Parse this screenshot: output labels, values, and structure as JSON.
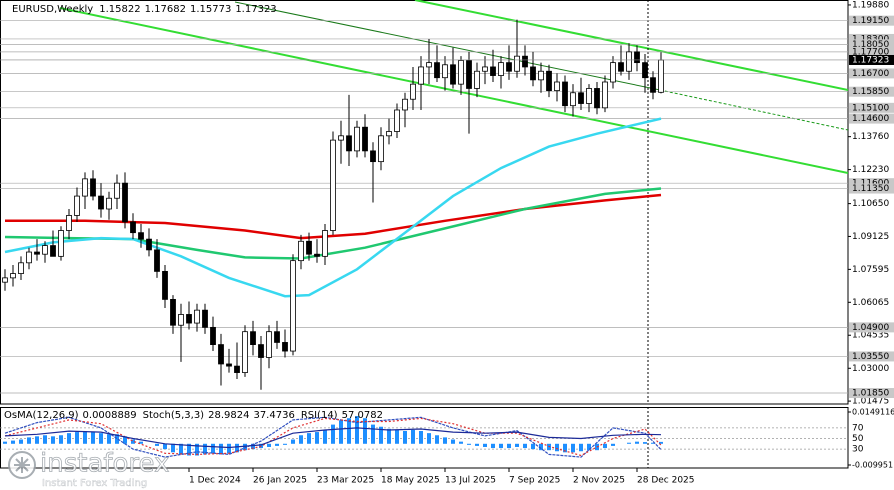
{
  "chart_data": {
    "type": "candlestick",
    "title": "EURUSD,Weekly",
    "categories": [
      null,
      null,
      null,
      null,
      null,
      null,
      null,
      null,
      null,
      null,
      null,
      null,
      null,
      null,
      null,
      null,
      null,
      null,
      null,
      null,
      null,
      null,
      null,
      "1 Dec 2024",
      null,
      null,
      null,
      null,
      null,
      null,
      null,
      "26 Jan 2025",
      null,
      null,
      null,
      null,
      null,
      null,
      null,
      "23 Mar 2025",
      null,
      null,
      null,
      null,
      null,
      null,
      null,
      "18 May 2025",
      null,
      null,
      null,
      null,
      null,
      null,
      null,
      "13 Jul 2025",
      null,
      null,
      null,
      null,
      null,
      null,
      null,
      "7 Sep 2025",
      null,
      null,
      null,
      null,
      null,
      null,
      null,
      "2 Nov 2025",
      null,
      null,
      null,
      null,
      null,
      null,
      null,
      "28 Dec 2025",
      null,
      null,
      null
    ],
    "ohlc": {
      "open": [
        1.07,
        1.072,
        1.074,
        1.079,
        1.084,
        1.083,
        1.087,
        1.082,
        1.094,
        1.101,
        1.11,
        1.118,
        1.11,
        1.104,
        1.109,
        1.116,
        1.098,
        1.093,
        1.09,
        1.085,
        1.075,
        1.062,
        1.05,
        1.055,
        1.051,
        1.057,
        1.049,
        1.041,
        1.032,
        1.031,
        1.028,
        1.047,
        1.041,
        1.035,
        1.047,
        1.042,
        1.038,
        1.08,
        1.089,
        1.083,
        1.082,
        1.094,
        1.136,
        1.138,
        1.131,
        1.142,
        1.131,
        1.126,
        1.138,
        1.14,
        1.15,
        1.155,
        1.162,
        1.17,
        1.172,
        1.165,
        1.171,
        1.162,
        1.173,
        1.16,
        1.168,
        1.17,
        1.166,
        1.172,
        1.168,
        1.175,
        1.17,
        1.164,
        1.168,
        1.159,
        1.163,
        1.152,
        1.158,
        1.153,
        1.16,
        1.151,
        1.163,
        1.172,
        1.168,
        1.177,
        1.172,
        1.165,
        1.15822
      ],
      "high": [
        1.076,
        1.078,
        1.082,
        1.086,
        1.09,
        1.089,
        1.094,
        1.096,
        1.104,
        1.114,
        1.121,
        1.122,
        1.116,
        1.112,
        1.12,
        1.121,
        1.102,
        1.097,
        1.095,
        1.09,
        1.078,
        1.064,
        1.06,
        1.061,
        1.06,
        1.06,
        1.054,
        1.046,
        1.039,
        1.042,
        1.05,
        1.052,
        1.045,
        1.05,
        1.052,
        1.048,
        1.083,
        1.092,
        1.093,
        1.09,
        1.097,
        1.14,
        1.145,
        1.157,
        1.145,
        1.148,
        1.135,
        1.142,
        1.146,
        1.153,
        1.158,
        1.17,
        1.175,
        1.183,
        1.18,
        1.175,
        1.179,
        1.175,
        1.177,
        1.172,
        1.175,
        1.178,
        1.175,
        1.18,
        1.192,
        1.18,
        1.177,
        1.172,
        1.171,
        1.167,
        1.166,
        1.162,
        1.165,
        1.162,
        1.163,
        1.166,
        1.175,
        1.18,
        1.181,
        1.18,
        1.176,
        1.168,
        1.17682
      ],
      "low": [
        1.066,
        1.068,
        1.071,
        1.076,
        1.08,
        1.079,
        1.083,
        1.08,
        1.09,
        1.098,
        1.104,
        1.108,
        1.1,
        1.099,
        1.104,
        1.095,
        1.09,
        1.086,
        1.082,
        1.072,
        1.058,
        1.046,
        1.033,
        1.048,
        1.047,
        1.046,
        1.038,
        1.022,
        1.028,
        1.025,
        1.026,
        1.036,
        1.02,
        1.03,
        1.039,
        1.035,
        1.036,
        1.076,
        1.08,
        1.079,
        1.078,
        1.092,
        1.125,
        1.124,
        1.128,
        1.128,
        1.107,
        1.122,
        1.134,
        1.137,
        1.142,
        1.15,
        1.15,
        1.162,
        1.163,
        1.159,
        1.16,
        1.157,
        1.139,
        1.156,
        1.162,
        1.163,
        1.16,
        1.164,
        1.165,
        1.166,
        1.161,
        1.158,
        1.156,
        1.154,
        1.149,
        1.147,
        1.15,
        1.149,
        1.148,
        1.149,
        1.16,
        1.166,
        1.164,
        1.168,
        1.158,
        1.155,
        1.15773
      ],
      "close": [
        1.072,
        1.074,
        1.079,
        1.084,
        1.083,
        1.087,
        1.082,
        1.094,
        1.101,
        1.11,
        1.118,
        1.11,
        1.104,
        1.109,
        1.116,
        1.098,
        1.093,
        1.09,
        1.085,
        1.075,
        1.062,
        1.05,
        1.055,
        1.051,
        1.057,
        1.049,
        1.041,
        1.032,
        1.031,
        1.028,
        1.047,
        1.041,
        1.035,
        1.047,
        1.042,
        1.038,
        1.08,
        1.089,
        1.083,
        1.082,
        1.094,
        1.136,
        1.138,
        1.131,
        1.142,
        1.131,
        1.126,
        1.138,
        1.14,
        1.15,
        1.155,
        1.162,
        1.17,
        1.172,
        1.165,
        1.171,
        1.162,
        1.173,
        1.16,
        1.168,
        1.17,
        1.166,
        1.172,
        1.168,
        1.175,
        1.17,
        1.164,
        1.168,
        1.159,
        1.163,
        1.152,
        1.158,
        1.153,
        1.16,
        1.151,
        1.163,
        1.172,
        1.168,
        1.177,
        1.172,
        1.165,
        1.15822,
        1.17323
      ]
    },
    "ylim": [
      1.0134,
      1.2011
    ],
    "yticks": [
      {
        "value": 1.1988,
        "label": "1.19880"
      },
      {
        "value": 1.1376,
        "label": "1.13760"
      },
      {
        "value": 1.1223,
        "label": "1.12230"
      },
      {
        "value": 1.1065,
        "label": "1.10650"
      },
      1.09125,
      1.07595,
      1.06065,
      1.04535,
      {
        "value": 1.03,
        "label": "1.03000"
      },
      1.01475
    ],
    "levels": [
      {
        "value": 1.1915,
        "label": "1.19150"
      },
      {
        "value": 1.183,
        "label": "1.18300"
      },
      {
        "value": 1.1805,
        "label": "1.18050"
      },
      {
        "value": 1.177,
        "label": "1.17700"
      },
      {
        "value": 1.167,
        "label": "1.16700"
      },
      {
        "value": 1.1585,
        "label": "1.15850"
      },
      {
        "value": 1.151,
        "label": "1.15100"
      },
      {
        "value": 1.146,
        "label": "1.14600"
      },
      {
        "value": 1.116,
        "label": "1.11600"
      },
      {
        "value": 1.1135,
        "label": "1.11350"
      },
      {
        "value": 1.049,
        "label": "1.04900"
      },
      {
        "value": 1.0355,
        "label": "1.03550"
      },
      {
        "value": 1.0185,
        "label": "1.01850"
      }
    ],
    "current_price": 1.17323,
    "moving_averages": [
      {
        "color": "#e00000",
        "x": [
          0,
          10,
          20,
          30,
          37,
          45,
          55,
          65,
          75,
          82
        ],
        "values": [
          1.0985,
          1.0985,
          1.0975,
          1.094,
          1.0905,
          1.0925,
          1.0985,
          1.104,
          1.108,
          1.1105
        ]
      },
      {
        "color": "#20c870",
        "x": [
          0,
          8,
          16,
          24,
          30,
          37,
          45,
          55,
          65,
          75,
          82
        ],
        "values": [
          1.091,
          1.0905,
          1.09,
          1.085,
          1.0815,
          1.081,
          1.086,
          1.095,
          1.104,
          1.111,
          1.1135
        ]
      },
      {
        "color": "#38d8f0",
        "x": [
          0,
          6,
          12,
          16,
          22,
          28,
          35,
          38,
          44,
          50,
          56,
          62,
          68,
          74,
          82
        ],
        "values": [
          1.084,
          1.0885,
          1.0905,
          1.09,
          1.082,
          1.072,
          1.0635,
          1.064,
          1.076,
          1.093,
          1.11,
          1.123,
          1.133,
          1.139,
          1.146
        ]
      }
    ],
    "indicators": {
      "ylim": [
        0,
        100
      ],
      "yticks": [
        70,
        50,
        30
      ],
      "y2lim": [
        -0.009951,
        0.0149116
      ],
      "y2ticks": [
        0.0149116,
        -0.009951
      ],
      "osma": {
        "label": "OsMA(12,26,9)",
        "color": "#1e8fff",
        "values": [
          0.001,
          0.0015,
          0.002,
          0.003,
          0.0035,
          0.004,
          0.0035,
          0.004,
          0.005,
          0.0055,
          0.006,
          0.0055,
          0.005,
          0.0045,
          0.0045,
          0.0035,
          0.002,
          0.001,
          0.0,
          -0.001,
          -0.0025,
          -0.004,
          -0.005,
          -0.0055,
          -0.0055,
          -0.005,
          -0.0045,
          -0.005,
          -0.0045,
          -0.004,
          -0.003,
          -0.0025,
          -0.002,
          -0.0015,
          -0.001,
          -0.0005,
          0.002,
          0.004,
          0.005,
          0.0055,
          0.0065,
          0.009,
          0.011,
          0.012,
          0.013,
          0.012,
          0.009,
          0.008,
          0.007,
          0.0065,
          0.006,
          0.0065,
          0.006,
          0.005,
          0.004,
          0.003,
          0.002,
          0.001,
          -0.0005,
          -0.001,
          -0.0015,
          -0.002,
          -0.002,
          -0.002,
          -0.0015,
          -0.002,
          -0.0025,
          -0.003,
          -0.003,
          -0.0035,
          -0.004,
          -0.004,
          -0.0035,
          -0.003,
          -0.003,
          -0.002,
          -0.001,
          0.0,
          0.0005,
          0.001,
          0.0008,
          0.0005,
          0.0008889
        ]
      },
      "stoch": {
        "label": "Stoch(5,3,3)",
        "main_color": "#3050c0",
        "signal_color": "#e03030",
        "x": [
          0,
          4,
          8,
          12,
          16,
          20,
          24,
          28,
          32,
          36,
          40,
          44,
          48,
          52,
          56,
          60,
          64,
          68,
          72,
          76,
          80,
          82
        ],
        "main": [
          60,
          80,
          90,
          70,
          30,
          15,
          25,
          20,
          45,
          85,
          90,
          80,
          85,
          90,
          70,
          55,
          65,
          20,
          15,
          70,
          60,
          28.9824
        ],
        "signal": [
          55,
          70,
          85,
          78,
          45,
          22,
          20,
          22,
          35,
          70,
          88,
          82,
          82,
          88,
          78,
          60,
          60,
          35,
          18,
          50,
          68,
          37.4736
        ]
      },
      "rsi": {
        "label": "RSI(14)",
        "color": "#1c2a98",
        "x": [
          0,
          4,
          8,
          12,
          16,
          20,
          24,
          28,
          32,
          36,
          40,
          44,
          48,
          52,
          56,
          60,
          64,
          68,
          72,
          76,
          80,
          82
        ],
        "values": [
          55,
          58,
          64,
          62,
          50,
          40,
          36,
          33,
          38,
          60,
          66,
          70,
          66,
          68,
          62,
          60,
          62,
          52,
          50,
          56,
          58,
          57.0782
        ]
      }
    },
    "watermark": {
      "brand": "instaforex",
      "tagline": "Instant Forex Trading"
    }
  }
}
